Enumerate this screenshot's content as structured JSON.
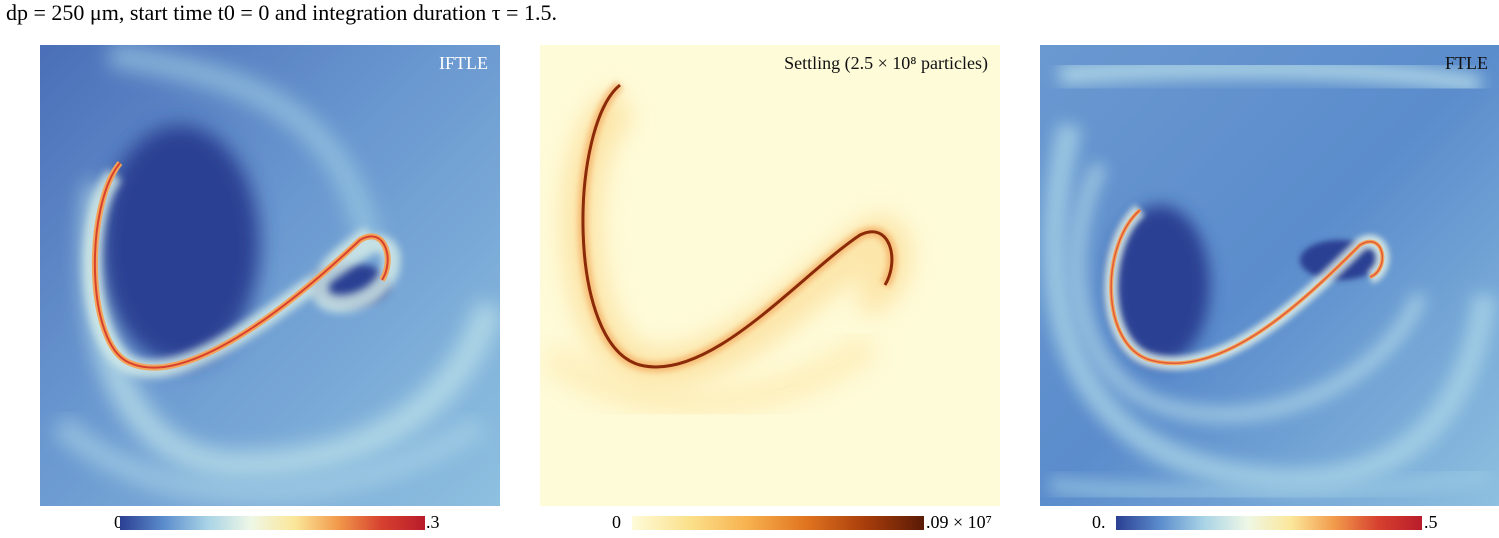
{
  "caption": {
    "text": "dp = 250 μm, start time t0 = 0 and integration duration τ = 1.5."
  },
  "panels": [
    {
      "label": "IFTLE",
      "colorbar": {
        "min_label": "0",
        "max_label": ".3",
        "colormap": "RdYlBu_r"
      }
    },
    {
      "label": "Settling (2.5 × 10⁸ particles)",
      "colorbar": {
        "min_label": "0",
        "max_label": ".09 × 10⁷",
        "colormap": "YlOrBr"
      }
    },
    {
      "label": "FTLE",
      "colorbar": {
        "min_label": "0.",
        "max_label": ".5",
        "colormap": "RdYlBu_r"
      }
    }
  ],
  "colors": {
    "deep_blue": "#2b3f93",
    "mid_blue": "#5b8ccc",
    "light_blue": "#a8d3e6",
    "pale": "#eef7e6",
    "yellow": "#fbe79a",
    "orange": "#f29a4b",
    "red": "#b81c2a",
    "cream": "#fefbd9",
    "dark_brown": "#5a1a05"
  }
}
